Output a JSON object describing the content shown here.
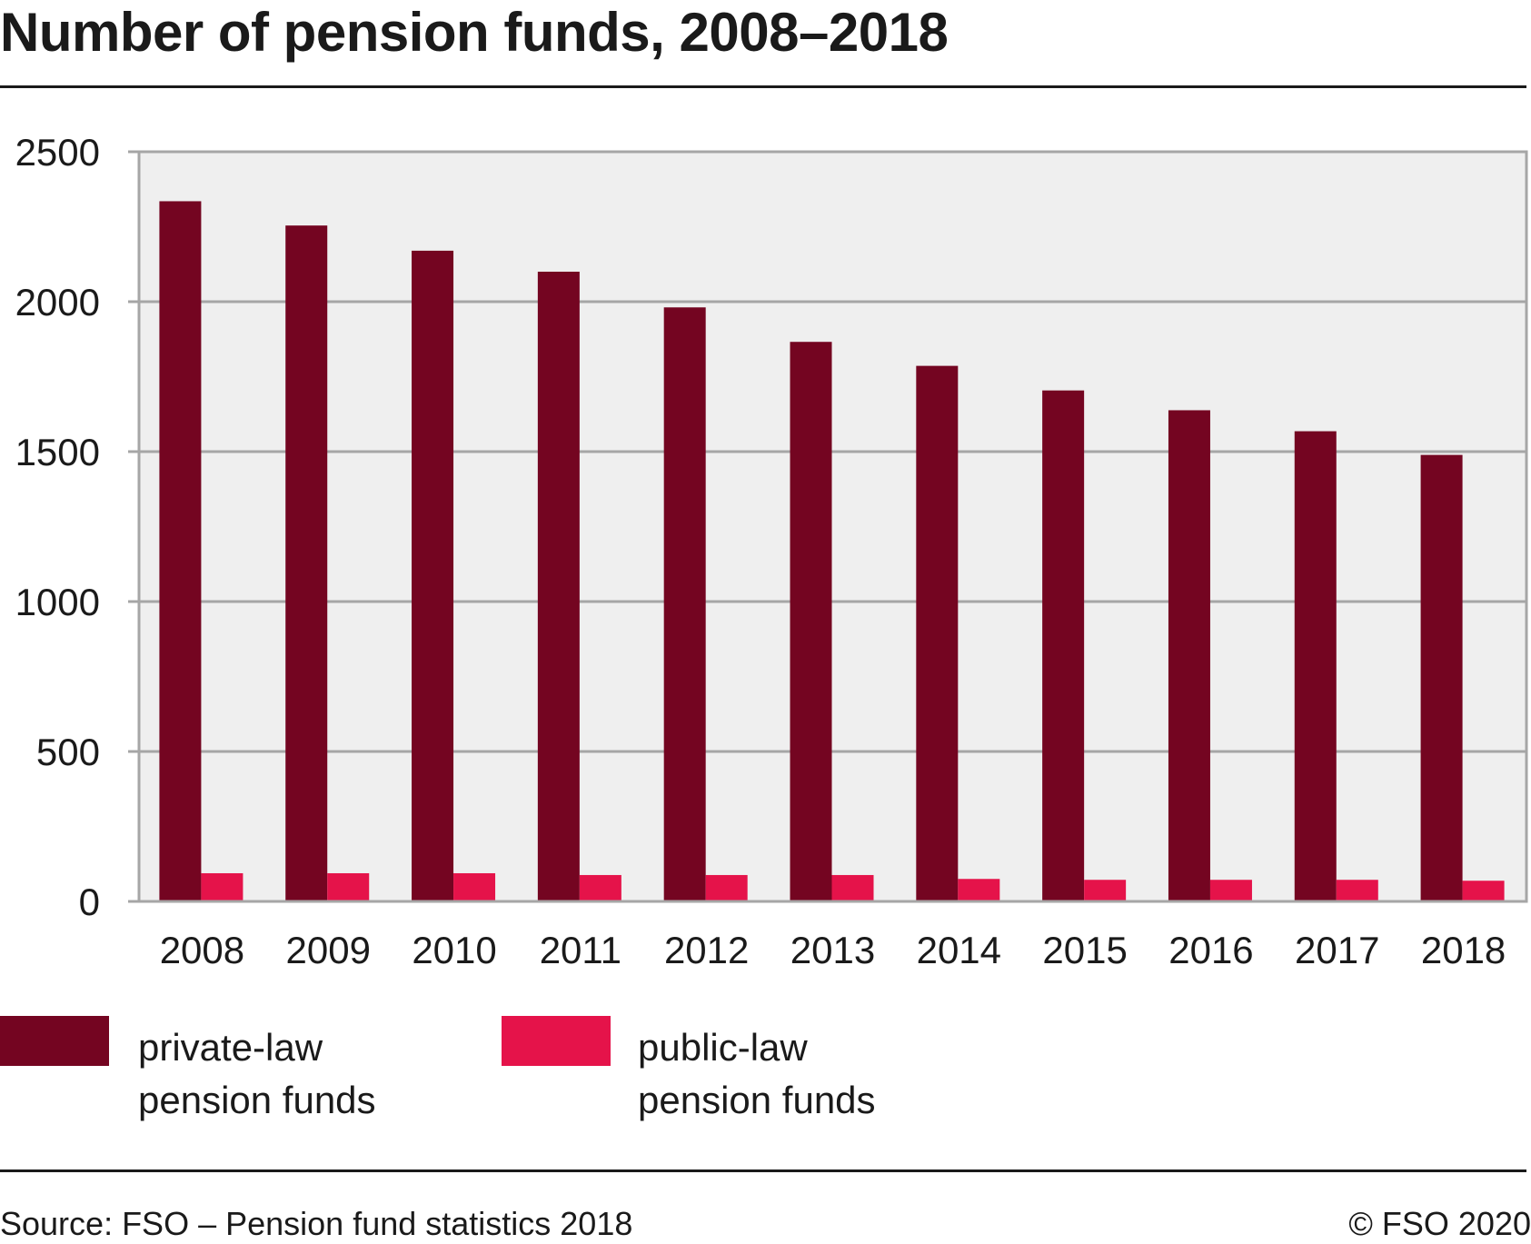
{
  "title": "Number of pension funds, 2008–2018",
  "source": "Source: FSO – Pension fund statistics 2018",
  "copyright": "© FSO 2020",
  "legend": [
    {
      "line1": "private-law",
      "line2": "pension funds",
      "color": "#740521"
    },
    {
      "line1": "public-law",
      "line2": "pension funds",
      "color": "#e5134a"
    }
  ],
  "chart_data": {
    "type": "bar",
    "title": "Number of pension funds, 2008–2018",
    "xlabel": "",
    "ylabel": "",
    "categories": [
      "2008",
      "2009",
      "2010",
      "2011",
      "2012",
      "2013",
      "2014",
      "2015",
      "2016",
      "2017",
      "2018"
    ],
    "series": [
      {
        "name": "private-law pension funds",
        "color": "#740521",
        "values": [
          2335,
          2254,
          2170,
          2100,
          1981,
          1866,
          1786,
          1704,
          1638,
          1568,
          1489
        ]
      },
      {
        "name": "public-law pension funds",
        "color": "#e5134a",
        "values": [
          94,
          94,
          94,
          88,
          88,
          88,
          75,
          72,
          72,
          72,
          69
        ]
      }
    ],
    "ylim": [
      0,
      2500
    ],
    "yticks": [
      0,
      500,
      1000,
      1500,
      2000,
      2500
    ],
    "grid": true,
    "plot_background": "#efefef",
    "legend_position": "bottom"
  }
}
